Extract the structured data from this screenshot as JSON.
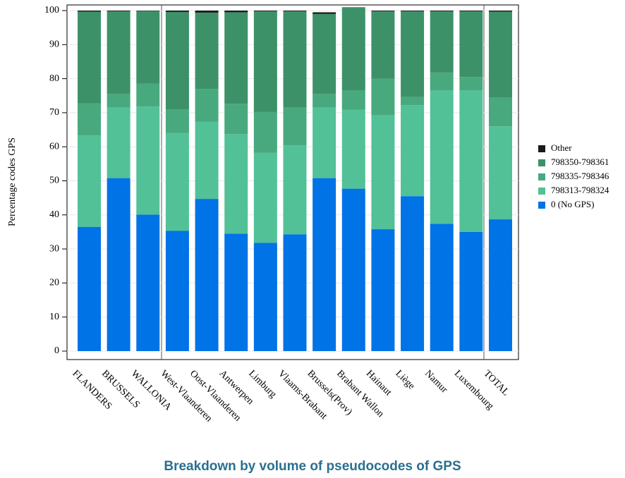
{
  "chart_data": {
    "type": "stacked_bar",
    "title": "Breakdown by volume of pseudocodes of GPS",
    "y_label": "Percentage codes GPS",
    "categories": [
      "FLANDERS",
      "BRUSSELS",
      "WALLONIA",
      "West-Vlaanderen",
      "Oost-Vlaanderen",
      "Antwerpen",
      "Limburg",
      "Vlaams-Brabant",
      "Brussels(Prov)",
      "Brabant Wallon",
      "Hainaut",
      "Liège",
      "Namur",
      "Luxembourg",
      "TOTAL"
    ],
    "series": [
      {
        "name": "0 (No GPS)",
        "color": "#0073e6",
        "values": [
          36.5,
          50.8,
          40.1,
          35.3,
          44.7,
          34.5,
          31.8,
          34.3,
          50.8,
          47.7,
          35.8,
          45.5,
          37.4,
          35.0,
          38.7
        ]
      },
      {
        "name": "798313-798324",
        "color": "#52c197",
        "values": [
          26.8,
          20.7,
          31.7,
          28.7,
          22.7,
          29.2,
          26.4,
          26.1,
          20.7,
          23.2,
          33.4,
          26.7,
          39.2,
          41.6,
          27.3
        ]
      },
      {
        "name": "798335-798346",
        "color": "#48a97e",
        "values": [
          9.4,
          4.0,
          6.7,
          7.0,
          9.6,
          8.9,
          12.0,
          11.1,
          4.0,
          5.7,
          10.8,
          2.4,
          5.2,
          3.9,
          8.4
        ]
      },
      {
        "name": "798350-798361",
        "color": "#3d9169",
        "values": [
          27.0,
          24.3,
          21.4,
          28.6,
          22.4,
          26.9,
          29.6,
          28.3,
          23.5,
          24.4,
          19.8,
          25.2,
          18.0,
          19.3,
          25.3
        ]
      },
      {
        "name": "Other",
        "color": "#1a1a1a",
        "values": [
          0.3,
          0.2,
          0.1,
          0.4,
          0.6,
          0.5,
          0.2,
          0.2,
          0.5,
          0.0,
          0.2,
          0.2,
          0.2,
          0.2,
          0.3
        ]
      }
    ],
    "ylim": [
      0,
      100
    ],
    "yticks": [
      0,
      10,
      20,
      30,
      40,
      50,
      60,
      70,
      80,
      90,
      100
    ],
    "grid": true,
    "legend": "right"
  }
}
